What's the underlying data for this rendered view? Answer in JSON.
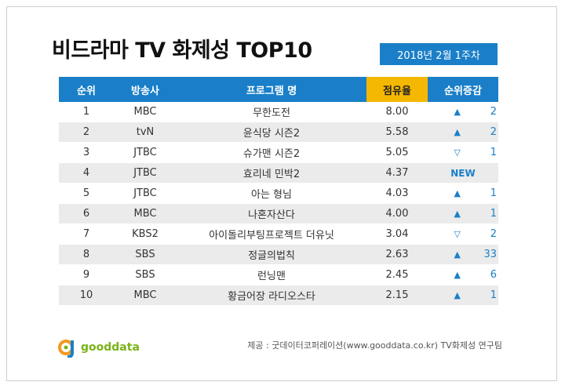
{
  "title": "비드라마 TV 화제성 TOP10",
  "date_badge": "2018년 2월 1주차",
  "columns": {
    "rank": "순위",
    "channel": "방송사",
    "program": "프로그램 명",
    "share": "점유율",
    "change": "순위증감"
  },
  "rows": [
    {
      "rank": "1",
      "channel": "MBC",
      "program": "무한도전",
      "share": "8.00",
      "dir": "up",
      "arrow": "▲",
      "amount": "2"
    },
    {
      "rank": "2",
      "channel": "tvN",
      "program": "윤식당 시즌2",
      "share": "5.58",
      "dir": "up",
      "arrow": "▲",
      "amount": "2"
    },
    {
      "rank": "3",
      "channel": "JTBC",
      "program": "슈가맨 시즌2",
      "share": "5.05",
      "dir": "down",
      "arrow": "▽",
      "amount": "1"
    },
    {
      "rank": "4",
      "channel": "JTBC",
      "program": "효리네 민박2",
      "share": "4.37",
      "dir": "new",
      "new_label": "NEW"
    },
    {
      "rank": "5",
      "channel": "JTBC",
      "program": "아는 형님",
      "share": "4.03",
      "dir": "up",
      "arrow": "▲",
      "amount": "1"
    },
    {
      "rank": "6",
      "channel": "MBC",
      "program": "나혼자산다",
      "share": "4.00",
      "dir": "up",
      "arrow": "▲",
      "amount": "1"
    },
    {
      "rank": "7",
      "channel": "KBS2",
      "program": "아이돌리부팅프로젝트 더유닛",
      "share": "3.04",
      "dir": "down",
      "arrow": "▽",
      "amount": "2"
    },
    {
      "rank": "8",
      "channel": "SBS",
      "program": "정글의법칙",
      "share": "2.63",
      "dir": "up",
      "arrow": "▲",
      "amount": "33"
    },
    {
      "rank": "9",
      "channel": "SBS",
      "program": "런닝맨",
      "share": "2.45",
      "dir": "up",
      "arrow": "▲",
      "amount": "6"
    },
    {
      "rank": "10",
      "channel": "MBC",
      "program": "황금어장 라디오스타",
      "share": "2.15",
      "dir": "up",
      "arrow": "▲",
      "amount": "1"
    }
  ],
  "logo_text": "gooddata",
  "source": "제공 : 굿데이터코퍼레이션(www.gooddata.co.kr) TV화제성 연구팀",
  "colors": {
    "header_blue": "#1a7fc8",
    "share_yellow": "#f5b800",
    "logo_green": "#7ab317",
    "logo_orange": "#f29a1e"
  }
}
